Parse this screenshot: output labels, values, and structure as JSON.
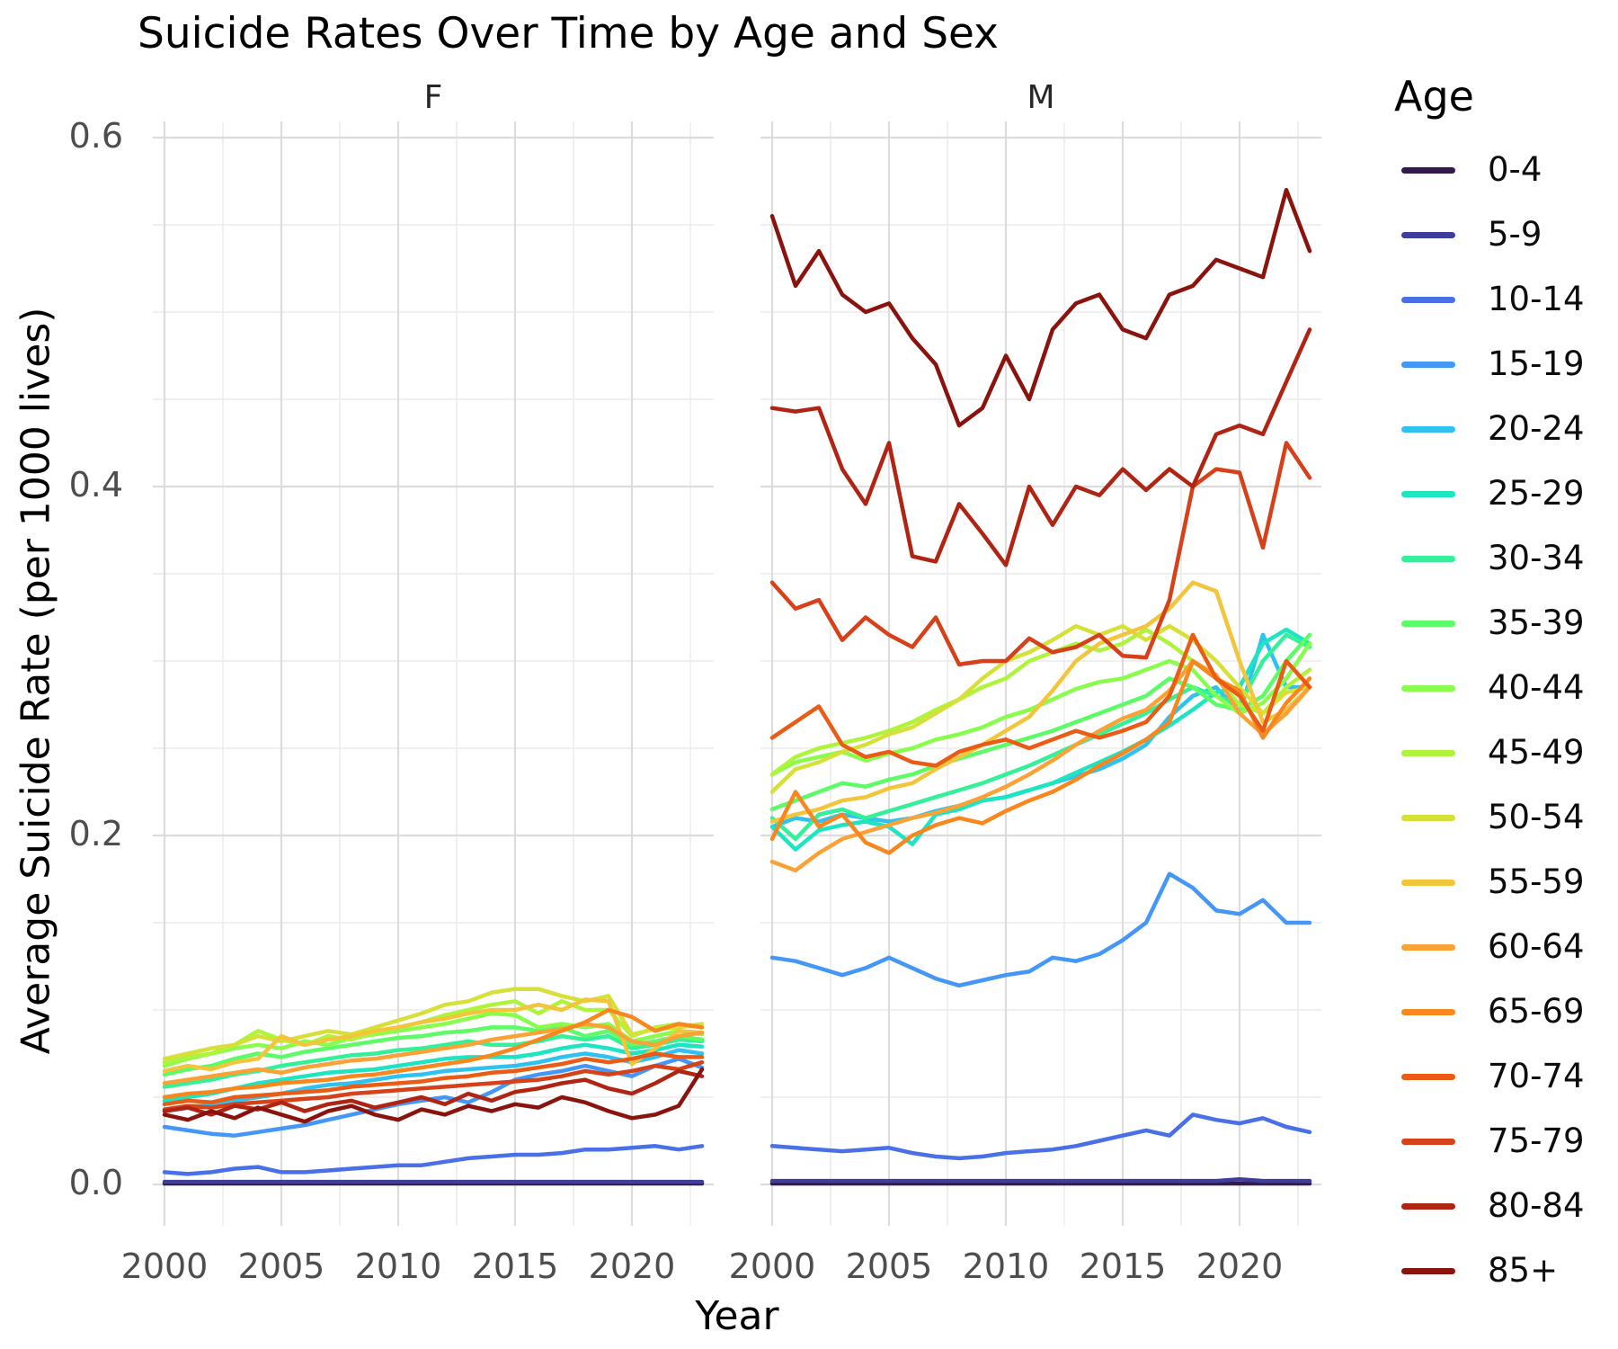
{
  "chart_data": {
    "type": "line",
    "title": "Suicide Rates Over Time by Age and Sex",
    "xlabel": "Year",
    "ylabel": "Average Suicide Rate (per 1000 lives)",
    "legend_title": "Age",
    "legend_position": "right",
    "grid": "light gray major + minor, white background, no spines",
    "x": [
      2000,
      2001,
      2002,
      2003,
      2004,
      2005,
      2006,
      2007,
      2008,
      2009,
      2010,
      2011,
      2012,
      2013,
      2014,
      2015,
      2016,
      2017,
      2018,
      2019,
      2020,
      2021,
      2022,
      2023
    ],
    "xticks": [
      "2000",
      "2005",
      "2010",
      "2015",
      "2020"
    ],
    "yticks": [
      "0.0",
      "0.2",
      "0.4",
      "0.6"
    ],
    "ylim": [
      -0.024,
      0.61
    ],
    "age_groups": [
      {
        "label": "0-4",
        "color": "#331a4d"
      },
      {
        "label": "5-9",
        "color": "#3f3e9c"
      },
      {
        "label": "10-14",
        "color": "#4a70e8"
      },
      {
        "label": "15-19",
        "color": "#4497f7"
      },
      {
        "label": "20-24",
        "color": "#2fc2f1"
      },
      {
        "label": "25-29",
        "color": "#1de4c1"
      },
      {
        "label": "30-34",
        "color": "#34f199"
      },
      {
        "label": "35-39",
        "color": "#5dfb66"
      },
      {
        "label": "40-44",
        "color": "#88fd4b"
      },
      {
        "label": "45-49",
        "color": "#aef43c"
      },
      {
        "label": "50-54",
        "color": "#d6e038"
      },
      {
        "label": "55-59",
        "color": "#f2c53a"
      },
      {
        "label": "60-64",
        "color": "#fba237"
      },
      {
        "label": "65-69",
        "color": "#f8871e"
      },
      {
        "label": "70-74",
        "color": "#ea5c15"
      },
      {
        "label": "75-79",
        "color": "#d64119"
      },
      {
        "label": "80-84",
        "color": "#b02413"
      },
      {
        "label": "85+",
        "color": "#8a130e"
      }
    ],
    "facets": [
      {
        "label": "F",
        "series": {
          "0-4": [
            0.0005,
            0.0005,
            0.0005,
            0.0005,
            0.0005,
            0.0005,
            0.0005,
            0.0005,
            0.0005,
            0.0005,
            0.0005,
            0.0005,
            0.0005,
            0.0005,
            0.0005,
            0.0005,
            0.0005,
            0.0005,
            0.0005,
            0.0005,
            0.0005,
            0.0005,
            0.0005,
            0.0005
          ],
          "5-9": [
            0.0015,
            0.0015,
            0.0015,
            0.0015,
            0.0015,
            0.0015,
            0.0015,
            0.0015,
            0.0015,
            0.0015,
            0.0015,
            0.0015,
            0.0015,
            0.0015,
            0.0015,
            0.0015,
            0.0015,
            0.0015,
            0.0015,
            0.0015,
            0.0015,
            0.0015,
            0.0015,
            0.0015
          ],
          "10-14": [
            0.007,
            0.006,
            0.007,
            0.009,
            0.01,
            0.007,
            0.007,
            0.008,
            0.009,
            0.01,
            0.011,
            0.011,
            0.013,
            0.015,
            0.016,
            0.017,
            0.017,
            0.018,
            0.02,
            0.02,
            0.021,
            0.022,
            0.02,
            0.022
          ],
          "15-19": [
            0.033,
            0.031,
            0.029,
            0.028,
            0.03,
            0.032,
            0.034,
            0.037,
            0.04,
            0.043,
            0.046,
            0.048,
            0.05,
            0.047,
            0.053,
            0.06,
            0.063,
            0.065,
            0.068,
            0.065,
            0.062,
            0.068,
            0.072,
            0.067
          ],
          "20-24": [
            0.042,
            0.044,
            0.046,
            0.048,
            0.05,
            0.052,
            0.055,
            0.057,
            0.058,
            0.06,
            0.062,
            0.063,
            0.065,
            0.066,
            0.067,
            0.068,
            0.07,
            0.073,
            0.075,
            0.073,
            0.07,
            0.073,
            0.077,
            0.075
          ],
          "25-29": [
            0.048,
            0.05,
            0.052,
            0.055,
            0.058,
            0.06,
            0.062,
            0.064,
            0.065,
            0.066,
            0.068,
            0.07,
            0.072,
            0.073,
            0.073,
            0.073,
            0.075,
            0.078,
            0.08,
            0.078,
            0.075,
            0.077,
            0.08,
            0.079
          ],
          "30-34": [
            0.056,
            0.058,
            0.06,
            0.063,
            0.065,
            0.068,
            0.07,
            0.072,
            0.074,
            0.075,
            0.077,
            0.078,
            0.08,
            0.082,
            0.08,
            0.08,
            0.082,
            0.085,
            0.083,
            0.085,
            0.078,
            0.08,
            0.083,
            0.082
          ],
          "35-39": [
            0.063,
            0.066,
            0.068,
            0.072,
            0.075,
            0.073,
            0.076,
            0.078,
            0.08,
            0.082,
            0.084,
            0.085,
            0.087,
            0.088,
            0.09,
            0.09,
            0.088,
            0.09,
            0.085,
            0.088,
            0.08,
            0.082,
            0.085,
            0.083
          ],
          "40-44": [
            0.068,
            0.072,
            0.075,
            0.078,
            0.08,
            0.078,
            0.082,
            0.08,
            0.084,
            0.086,
            0.088,
            0.09,
            0.092,
            0.095,
            0.098,
            0.097,
            0.09,
            0.092,
            0.09,
            0.092,
            0.082,
            0.085,
            0.088,
            0.086
          ],
          "45-49": [
            0.07,
            0.073,
            0.075,
            0.08,
            0.088,
            0.083,
            0.08,
            0.085,
            0.083,
            0.087,
            0.09,
            0.093,
            0.097,
            0.1,
            0.103,
            0.105,
            0.098,
            0.105,
            0.1,
            0.1,
            0.085,
            0.09,
            0.092,
            0.09
          ],
          "50-54": [
            0.072,
            0.075,
            0.078,
            0.08,
            0.085,
            0.082,
            0.085,
            0.088,
            0.086,
            0.09,
            0.094,
            0.098,
            0.103,
            0.105,
            0.11,
            0.112,
            0.112,
            0.108,
            0.105,
            0.108,
            0.086,
            0.089,
            0.09,
            0.092
          ],
          "55-59": [
            0.065,
            0.068,
            0.066,
            0.07,
            0.072,
            0.085,
            0.08,
            0.083,
            0.085,
            0.088,
            0.09,
            0.093,
            0.095,
            0.098,
            0.1,
            0.1,
            0.103,
            0.1,
            0.106,
            0.105,
            0.069,
            0.078,
            0.088,
            0.087
          ],
          "60-64": [
            0.058,
            0.06,
            0.062,
            0.064,
            0.066,
            0.064,
            0.067,
            0.069,
            0.071,
            0.072,
            0.074,
            0.076,
            0.078,
            0.08,
            0.083,
            0.085,
            0.087,
            0.089,
            0.092,
            0.09,
            0.082,
            0.08,
            0.085,
            0.087
          ],
          "65-69": [
            0.05,
            0.052,
            0.053,
            0.055,
            0.056,
            0.058,
            0.059,
            0.06,
            0.062,
            0.063,
            0.065,
            0.067,
            0.069,
            0.071,
            0.074,
            0.078,
            0.083,
            0.088,
            0.093,
            0.1,
            0.096,
            0.088,
            0.092,
            0.09
          ],
          "70-74": [
            0.046,
            0.048,
            0.047,
            0.05,
            0.051,
            0.052,
            0.053,
            0.054,
            0.056,
            0.057,
            0.058,
            0.059,
            0.061,
            0.062,
            0.064,
            0.065,
            0.067,
            0.069,
            0.072,
            0.07,
            0.072,
            0.075,
            0.073,
            0.073
          ],
          "75-79": [
            0.043,
            0.045,
            0.044,
            0.046,
            0.047,
            0.048,
            0.049,
            0.05,
            0.052,
            0.053,
            0.054,
            0.055,
            0.056,
            0.057,
            0.058,
            0.059,
            0.06,
            0.062,
            0.065,
            0.063,
            0.065,
            0.068,
            0.066,
            0.07
          ],
          "80-84": [
            0.042,
            0.044,
            0.04,
            0.045,
            0.043,
            0.047,
            0.042,
            0.046,
            0.048,
            0.044,
            0.047,
            0.05,
            0.046,
            0.052,
            0.048,
            0.053,
            0.055,
            0.058,
            0.06,
            0.055,
            0.052,
            0.058,
            0.065,
            0.062
          ],
          "85+": [
            0.04,
            0.037,
            0.042,
            0.038,
            0.044,
            0.04,
            0.036,
            0.042,
            0.045,
            0.04,
            0.037,
            0.043,
            0.04,
            0.045,
            0.042,
            0.046,
            0.044,
            0.05,
            0.047,
            0.042,
            0.038,
            0.04,
            0.045,
            0.066
          ]
        }
      },
      {
        "label": "M",
        "series": {
          "0-4": [
            0.0005,
            0.0005,
            0.0005,
            0.0005,
            0.0005,
            0.0005,
            0.0005,
            0.0005,
            0.0005,
            0.0005,
            0.0005,
            0.0005,
            0.0005,
            0.0005,
            0.0005,
            0.0005,
            0.0005,
            0.0005,
            0.0005,
            0.0005,
            0.0005,
            0.0005,
            0.0005,
            0.0005
          ],
          "5-9": [
            0.002,
            0.002,
            0.002,
            0.002,
            0.002,
            0.002,
            0.002,
            0.002,
            0.002,
            0.002,
            0.002,
            0.002,
            0.002,
            0.002,
            0.002,
            0.002,
            0.002,
            0.002,
            0.002,
            0.002,
            0.003,
            0.002,
            0.002,
            0.002
          ],
          "10-14": [
            0.022,
            0.021,
            0.02,
            0.019,
            0.02,
            0.021,
            0.018,
            0.016,
            0.015,
            0.016,
            0.018,
            0.019,
            0.02,
            0.022,
            0.025,
            0.028,
            0.031,
            0.028,
            0.04,
            0.037,
            0.035,
            0.038,
            0.033,
            0.03
          ],
          "15-19": [
            0.13,
            0.128,
            0.124,
            0.12,
            0.124,
            0.13,
            0.124,
            0.118,
            0.114,
            0.117,
            0.12,
            0.122,
            0.13,
            0.128,
            0.132,
            0.14,
            0.15,
            0.178,
            0.17,
            0.157,
            0.155,
            0.163,
            0.15,
            0.15
          ],
          "20-24": [
            0.205,
            0.21,
            0.208,
            0.212,
            0.21,
            0.208,
            0.21,
            0.214,
            0.217,
            0.22,
            0.222,
            0.226,
            0.23,
            0.234,
            0.238,
            0.244,
            0.252,
            0.268,
            0.28,
            0.285,
            0.27,
            0.315,
            0.285,
            0.285
          ],
          "25-29": [
            0.205,
            0.192,
            0.203,
            0.206,
            0.208,
            0.205,
            0.195,
            0.212,
            0.215,
            0.22,
            0.222,
            0.226,
            0.23,
            0.236,
            0.242,
            0.248,
            0.255,
            0.263,
            0.272,
            0.282,
            0.285,
            0.31,
            0.318,
            0.31
          ],
          "30-34": [
            0.21,
            0.198,
            0.212,
            0.215,
            0.21,
            0.214,
            0.218,
            0.222,
            0.226,
            0.23,
            0.235,
            0.24,
            0.246,
            0.252,
            0.258,
            0.264,
            0.27,
            0.278,
            0.285,
            0.28,
            0.275,
            0.3,
            0.315,
            0.308
          ],
          "35-39": [
            0.215,
            0.22,
            0.225,
            0.23,
            0.228,
            0.232,
            0.235,
            0.24,
            0.244,
            0.248,
            0.252,
            0.256,
            0.26,
            0.265,
            0.27,
            0.275,
            0.28,
            0.29,
            0.285,
            0.275,
            0.272,
            0.28,
            0.3,
            0.315
          ],
          "40-44": [
            0.235,
            0.242,
            0.245,
            0.248,
            0.243,
            0.247,
            0.25,
            0.255,
            0.258,
            0.262,
            0.268,
            0.272,
            0.278,
            0.284,
            0.288,
            0.29,
            0.295,
            0.3,
            0.295,
            0.28,
            0.27,
            0.276,
            0.29,
            0.31
          ],
          "45-49": [
            0.235,
            0.245,
            0.25,
            0.253,
            0.256,
            0.26,
            0.265,
            0.272,
            0.278,
            0.285,
            0.29,
            0.3,
            0.305,
            0.31,
            0.306,
            0.31,
            0.318,
            0.31,
            0.3,
            0.29,
            0.275,
            0.27,
            0.285,
            0.295
          ],
          "50-54": [
            0.225,
            0.238,
            0.242,
            0.248,
            0.252,
            0.258,
            0.262,
            0.27,
            0.278,
            0.29,
            0.3,
            0.305,
            0.312,
            0.32,
            0.315,
            0.32,
            0.312,
            0.32,
            0.312,
            0.3,
            0.285,
            0.27,
            0.282,
            0.285
          ],
          "55-59": [
            0.208,
            0.212,
            0.215,
            0.22,
            0.222,
            0.227,
            0.23,
            0.238,
            0.245,
            0.252,
            0.26,
            0.268,
            0.283,
            0.3,
            0.31,
            0.315,
            0.32,
            0.33,
            0.345,
            0.34,
            0.3,
            0.265,
            0.272,
            0.285
          ],
          "60-64": [
            0.185,
            0.18,
            0.19,
            0.198,
            0.202,
            0.206,
            0.21,
            0.213,
            0.217,
            0.222,
            0.228,
            0.235,
            0.243,
            0.252,
            0.26,
            0.267,
            0.272,
            0.283,
            0.3,
            0.292,
            0.27,
            0.258,
            0.27,
            0.285
          ],
          "65-69": [
            0.198,
            0.225,
            0.205,
            0.212,
            0.196,
            0.19,
            0.2,
            0.206,
            0.21,
            0.207,
            0.214,
            0.22,
            0.225,
            0.232,
            0.24,
            0.247,
            0.255,
            0.265,
            0.3,
            0.29,
            0.283,
            0.256,
            0.276,
            0.29
          ],
          "70-74": [
            0.256,
            0.265,
            0.274,
            0.252,
            0.245,
            0.248,
            0.242,
            0.24,
            0.248,
            0.252,
            0.255,
            0.25,
            0.255,
            0.26,
            0.256,
            0.26,
            0.265,
            0.28,
            0.315,
            0.29,
            0.28,
            0.26,
            0.3,
            0.285
          ],
          "75-79": [
            0.345,
            0.33,
            0.335,
            0.312,
            0.325,
            0.315,
            0.308,
            0.325,
            0.298,
            0.3,
            0.3,
            0.313,
            0.305,
            0.308,
            0.315,
            0.303,
            0.302,
            0.335,
            0.4,
            0.41,
            0.408,
            0.365,
            0.425,
            0.405
          ],
          "80-84": [
            0.445,
            0.443,
            0.445,
            0.41,
            0.39,
            0.425,
            0.36,
            0.357,
            0.39,
            0.373,
            0.355,
            0.4,
            0.378,
            0.4,
            0.395,
            0.41,
            0.398,
            0.41,
            0.4,
            0.43,
            0.435,
            0.43,
            0.46,
            0.49
          ],
          "85+": [
            0.555,
            0.515,
            0.535,
            0.51,
            0.5,
            0.505,
            0.485,
            0.47,
            0.435,
            0.445,
            0.475,
            0.45,
            0.49,
            0.505,
            0.51,
            0.49,
            0.485,
            0.51,
            0.515,
            0.53,
            0.525,
            0.52,
            0.57,
            0.535
          ]
        }
      }
    ]
  }
}
